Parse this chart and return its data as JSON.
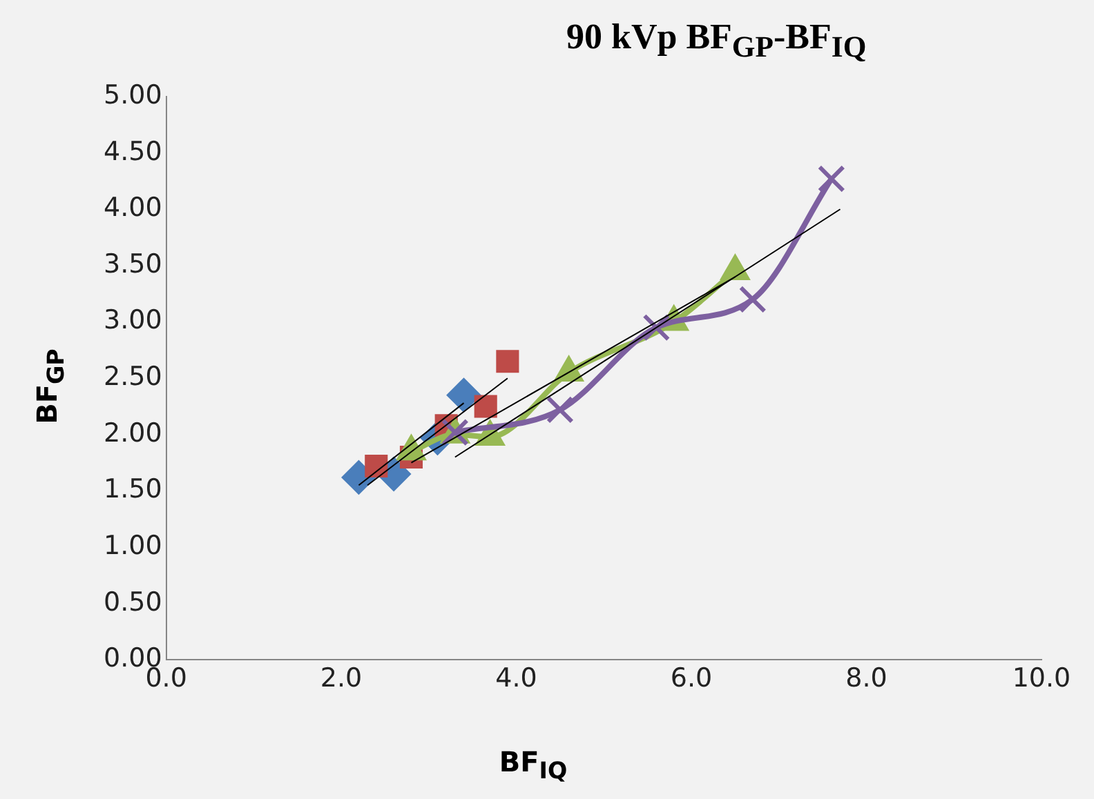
{
  "chart_data": {
    "type": "scatter",
    "title": "90 kVp BF$_{GP}$-BF$_{IQ}$",
    "xlabel": "BF$_{IQ}$",
    "ylabel": "BF$_{GP}$",
    "xlim": [
      0,
      10
    ],
    "xticks": [
      {
        "value": 0,
        "label": "0.0"
      },
      {
        "value": 2,
        "label": "2.0"
      },
      {
        "value": 4,
        "label": "4.0"
      },
      {
        "value": 6,
        "label": "6.0"
      },
      {
        "value": 8,
        "label": "8.0"
      },
      {
        "value": 10,
        "label": "10.0"
      }
    ],
    "ylim": [
      0,
      5
    ],
    "yticks": [
      {
        "value": 0,
        "label": "0.00"
      },
      {
        "value": 0.5,
        "label": "0.50"
      },
      {
        "value": 1,
        "label": "1.00"
      },
      {
        "value": 1.5,
        "label": "1.50"
      },
      {
        "value": 2,
        "label": "2.00"
      },
      {
        "value": 2.5,
        "label": "2.50"
      },
      {
        "value": 3,
        "label": "3.00"
      },
      {
        "value": 3.5,
        "label": "3.50"
      },
      {
        "value": 4,
        "label": "4.00"
      },
      {
        "value": 4.5,
        "label": "4.50"
      },
      {
        "value": 5,
        "label": "5.00"
      }
    ],
    "grid": false,
    "legend": false,
    "series": [
      {
        "color": "#4a7ebb",
        "marker": "diamond",
        "x": [
          2.2,
          2.6,
          3.1,
          3.4
        ],
        "values": [
          1.62,
          1.65,
          1.97,
          2.35
        ]
      },
      {
        "color": "#be4b48",
        "marker": "square",
        "x": [
          2.4,
          2.8,
          3.2,
          3.65,
          3.9
        ],
        "values": [
          1.72,
          1.8,
          2.08,
          2.25,
          2.65
        ]
      },
      {
        "type": "line",
        "color": "#98b954",
        "marker": "triangle",
        "x": [
          2.8,
          3.3,
          3.7,
          4.6,
          5.8,
          6.5
        ],
        "values": [
          1.85,
          2.0,
          1.98,
          2.55,
          3.0,
          3.45
        ]
      },
      {
        "type": "line",
        "color": "#7d60a0",
        "marker": "cross",
        "x": [
          3.3,
          4.5,
          5.6,
          6.7,
          7.6
        ],
        "values": [
          2.02,
          2.22,
          2.95,
          3.2,
          4.27
        ]
      },
      {
        "type": "line",
        "color": "#000000",
        "marker": "none",
        "x": [
          2.2,
          3.4
        ],
        "values": [
          1.55,
          2.28
        ]
      },
      {
        "type": "line",
        "color": "#000000",
        "marker": "none",
        "x": [
          2.3,
          3.9
        ],
        "values": [
          1.55,
          2.5
        ]
      },
      {
        "type": "line",
        "color": "#000000",
        "marker": "none",
        "x": [
          2.8,
          6.5
        ],
        "values": [
          1.75,
          3.4
        ]
      },
      {
        "type": "line",
        "color": "#000000",
        "marker": "none",
        "x": [
          3.3,
          7.7
        ],
        "values": [
          1.8,
          4.0
        ]
      }
    ]
  }
}
